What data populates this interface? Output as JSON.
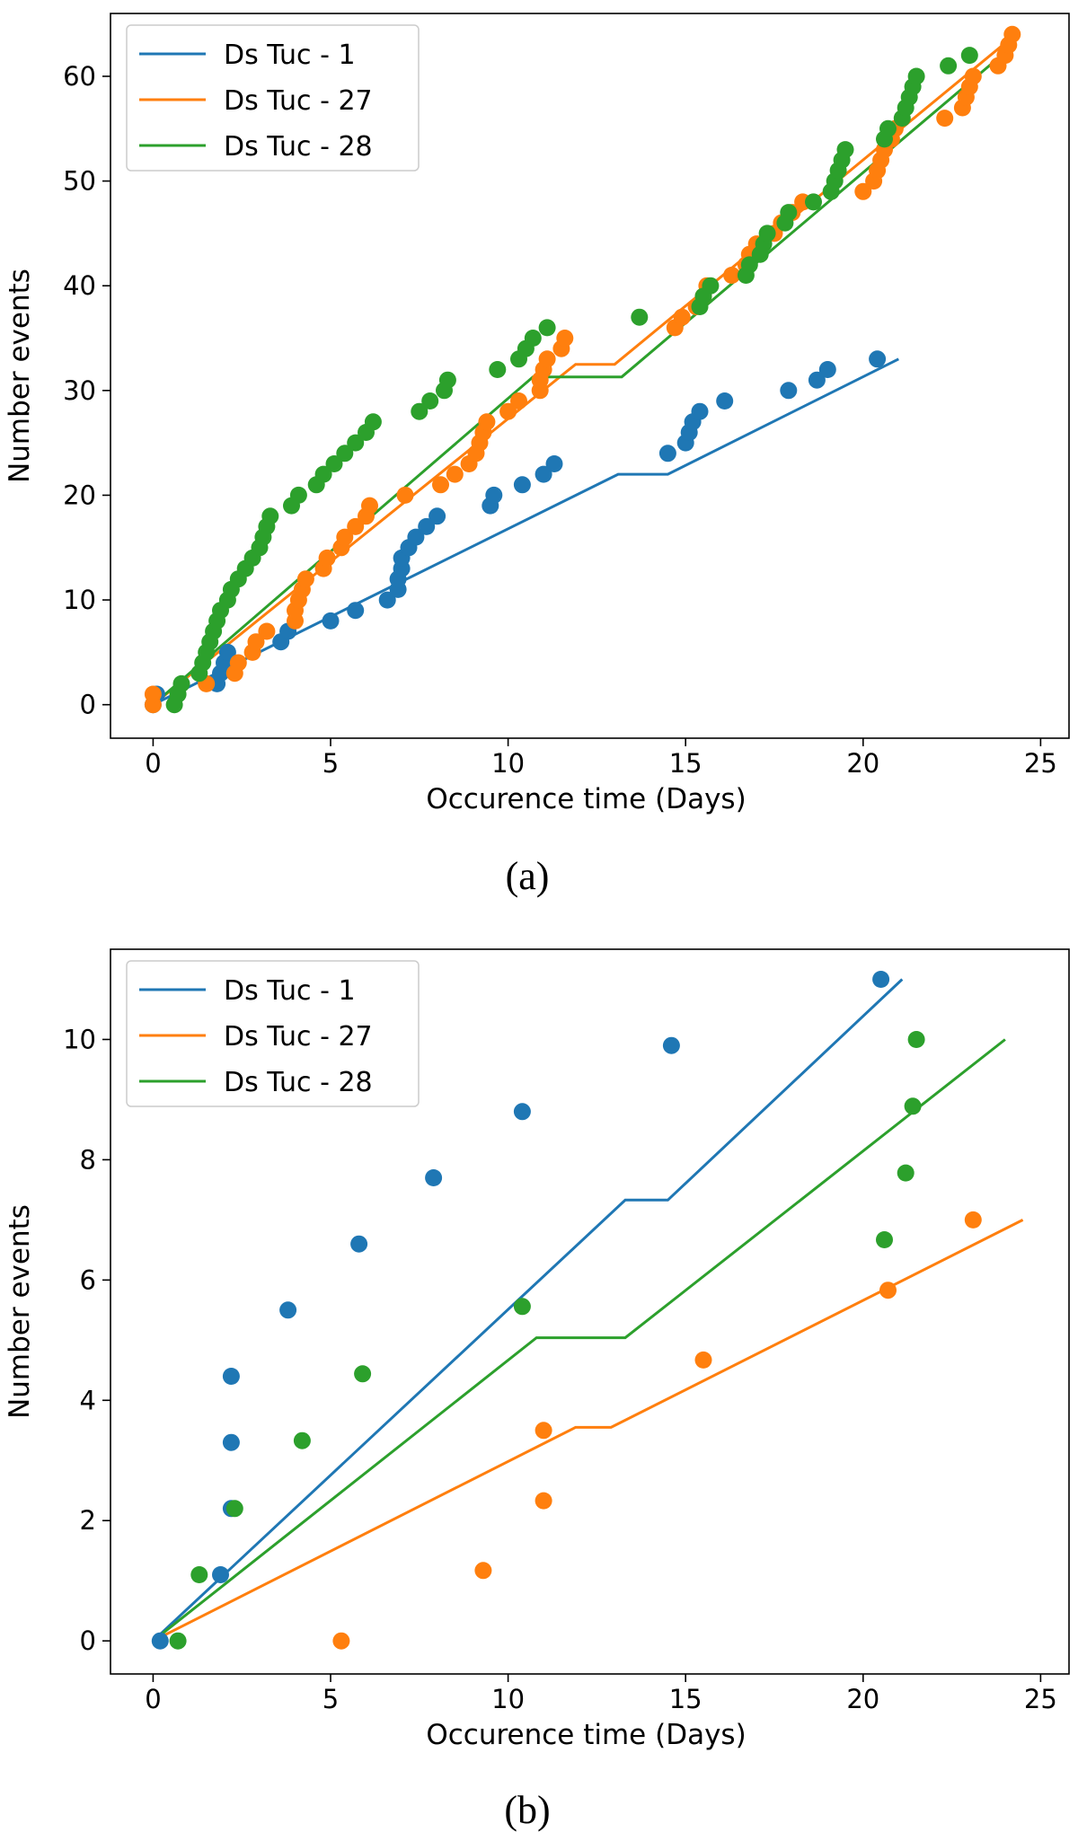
{
  "figure": {
    "captions": [
      "(a)",
      "(b)"
    ],
    "colors": {
      "Ds Tuc - 1": "#1f77b4",
      "Ds Tuc - 27": "#ff7f0e",
      "Ds Tuc - 28": "#2ca02c"
    }
  },
  "chart_data": [
    {
      "panel": "(a)",
      "type": "scatter",
      "title": "",
      "xlabel": "Occurence time (Days)",
      "ylabel": "Number events",
      "xlim": [
        -1.2,
        25.8
      ],
      "ylim": [
        -3.2,
        66
      ],
      "xticks": [
        0,
        5,
        10,
        15,
        20,
        25
      ],
      "yticks": [
        0,
        10,
        20,
        30,
        40,
        50,
        60
      ],
      "legend": {
        "location": "upper-left",
        "entries": [
          "Ds Tuc - 1",
          "Ds Tuc - 27",
          "Ds Tuc - 28"
        ]
      },
      "series": [
        {
          "name": "Ds Tuc - 1",
          "color": "#1f77b4",
          "points": [
            [
              0,
              0
            ],
            [
              0.1,
              1
            ],
            [
              1.8,
              2
            ],
            [
              1.9,
              3
            ],
            [
              2.0,
              4
            ],
            [
              2.1,
              5
            ],
            [
              3.6,
              6
            ],
            [
              3.8,
              7
            ],
            [
              5.0,
              8
            ],
            [
              5.7,
              9
            ],
            [
              6.6,
              10
            ],
            [
              6.9,
              11
            ],
            [
              6.9,
              12
            ],
            [
              7.0,
              13
            ],
            [
              7.0,
              14
            ],
            [
              7.2,
              15
            ],
            [
              7.4,
              16
            ],
            [
              7.7,
              17
            ],
            [
              8.0,
              18
            ],
            [
              9.5,
              19
            ],
            [
              9.6,
              20
            ],
            [
              10.4,
              21
            ],
            [
              11.0,
              22
            ],
            [
              11.3,
              23
            ],
            [
              14.5,
              24
            ],
            [
              15.0,
              25
            ],
            [
              15.1,
              26
            ],
            [
              15.2,
              27
            ],
            [
              15.4,
              28
            ],
            [
              16.1,
              29
            ],
            [
              17.9,
              30
            ],
            [
              18.7,
              31
            ],
            [
              19.0,
              32
            ],
            [
              20.4,
              33
            ]
          ],
          "fit_line": [
            [
              0,
              0
            ],
            [
              13.1,
              22
            ],
            [
              14.5,
              22
            ],
            [
              21.0,
              33
            ]
          ]
        },
        {
          "name": "Ds Tuc - 27",
          "color": "#ff7f0e",
          "points": [
            [
              0,
              0
            ],
            [
              0,
              1
            ],
            [
              1.5,
              2
            ],
            [
              2.3,
              3
            ],
            [
              2.4,
              4
            ],
            [
              2.8,
              5
            ],
            [
              2.9,
              6
            ],
            [
              3.2,
              7
            ],
            [
              4.0,
              8
            ],
            [
              4.0,
              9
            ],
            [
              4.1,
              10
            ],
            [
              4.2,
              11
            ],
            [
              4.3,
              12
            ],
            [
              4.8,
              13
            ],
            [
              4.9,
              14
            ],
            [
              5.3,
              15
            ],
            [
              5.4,
              16
            ],
            [
              5.7,
              17
            ],
            [
              6.0,
              18
            ],
            [
              6.1,
              19
            ],
            [
              7.1,
              20
            ],
            [
              8.1,
              21
            ],
            [
              8.5,
              22
            ],
            [
              8.9,
              23
            ],
            [
              9.1,
              24
            ],
            [
              9.2,
              25
            ],
            [
              9.3,
              26
            ],
            [
              9.4,
              27
            ],
            [
              10.0,
              28
            ],
            [
              10.3,
              29
            ],
            [
              10.9,
              30
            ],
            [
              10.9,
              31
            ],
            [
              11.0,
              32
            ],
            [
              11.1,
              33
            ],
            [
              11.5,
              34
            ],
            [
              11.6,
              35
            ],
            [
              14.7,
              36
            ],
            [
              14.9,
              37
            ],
            [
              15.3,
              38
            ],
            [
              15.5,
              39
            ],
            [
              15.6,
              40
            ],
            [
              16.3,
              41
            ],
            [
              16.7,
              42
            ],
            [
              16.8,
              43
            ],
            [
              17.0,
              44
            ],
            [
              17.5,
              45
            ],
            [
              17.7,
              46
            ],
            [
              18.0,
              47
            ],
            [
              18.3,
              48
            ],
            [
              20.0,
              49
            ],
            [
              20.3,
              50
            ],
            [
              20.4,
              51
            ],
            [
              20.5,
              52
            ],
            [
              20.6,
              53
            ],
            [
              20.8,
              54
            ],
            [
              20.9,
              55
            ],
            [
              22.3,
              56
            ],
            [
              22.8,
              57
            ],
            [
              22.9,
              58
            ],
            [
              23.0,
              59
            ],
            [
              23.1,
              60
            ],
            [
              23.8,
              61
            ],
            [
              24.0,
              62
            ],
            [
              24.1,
              63
            ],
            [
              24.2,
              64
            ]
          ],
          "fit_line": [
            [
              0,
              0
            ],
            [
              11.9,
              32.5
            ],
            [
              13.0,
              32.5
            ],
            [
              24.3,
              64
            ]
          ]
        },
        {
          "name": "Ds Tuc - 28",
          "color": "#2ca02c",
          "points": [
            [
              0.6,
              0
            ],
            [
              0.7,
              1
            ],
            [
              0.8,
              2
            ],
            [
              1.3,
              3
            ],
            [
              1.4,
              4
            ],
            [
              1.5,
              5
            ],
            [
              1.6,
              6
            ],
            [
              1.7,
              7
            ],
            [
              1.8,
              8
            ],
            [
              1.9,
              9
            ],
            [
              2.1,
              10
            ],
            [
              2.2,
              11
            ],
            [
              2.4,
              12
            ],
            [
              2.6,
              13
            ],
            [
              2.8,
              14
            ],
            [
              3.0,
              15
            ],
            [
              3.1,
              16
            ],
            [
              3.2,
              17
            ],
            [
              3.3,
              18
            ],
            [
              3.9,
              19
            ],
            [
              4.1,
              20
            ],
            [
              4.6,
              21
            ],
            [
              4.8,
              22
            ],
            [
              5.1,
              23
            ],
            [
              5.4,
              24
            ],
            [
              5.7,
              25
            ],
            [
              6.0,
              26
            ],
            [
              6.2,
              27
            ],
            [
              7.5,
              28
            ],
            [
              7.8,
              29
            ],
            [
              8.2,
              30
            ],
            [
              8.3,
              31
            ],
            [
              9.7,
              32
            ],
            [
              10.3,
              33
            ],
            [
              10.5,
              34
            ],
            [
              10.7,
              35
            ],
            [
              11.1,
              36
            ],
            [
              13.7,
              37
            ],
            [
              15.4,
              38
            ],
            [
              15.5,
              39
            ],
            [
              15.7,
              40
            ],
            [
              16.7,
              41
            ],
            [
              16.8,
              42
            ],
            [
              17.1,
              43
            ],
            [
              17.2,
              44
            ],
            [
              17.3,
              45
            ],
            [
              17.8,
              46
            ],
            [
              17.9,
              47
            ],
            [
              18.6,
              48
            ],
            [
              19.1,
              49
            ],
            [
              19.2,
              50
            ],
            [
              19.3,
              51
            ],
            [
              19.4,
              52
            ],
            [
              19.5,
              53
            ],
            [
              20.6,
              54
            ],
            [
              20.7,
              55
            ],
            [
              21.1,
              56
            ],
            [
              21.2,
              57
            ],
            [
              21.3,
              58
            ],
            [
              21.4,
              59
            ],
            [
              21.5,
              60
            ],
            [
              22.4,
              61
            ],
            [
              23.0,
              62
            ]
          ],
          "fit_line": [
            [
              0,
              0
            ],
            [
              10.7,
              31.3
            ],
            [
              13.2,
              31.3
            ],
            [
              23.9,
              62
            ]
          ]
        }
      ]
    },
    {
      "panel": "(b)",
      "type": "scatter",
      "title": "",
      "xlabel": "Occurence time (Days)",
      "ylabel": "Number events",
      "xlim": [
        -1.2,
        25.8
      ],
      "ylim": [
        -0.55,
        11.5
      ],
      "xticks": [
        0,
        5,
        10,
        15,
        20,
        25
      ],
      "yticks": [
        0,
        2,
        4,
        6,
        8,
        10
      ],
      "legend": {
        "location": "upper-left",
        "entries": [
          "Ds Tuc - 1",
          "Ds Tuc - 27",
          "Ds Tuc - 28"
        ]
      },
      "series": [
        {
          "name": "Ds Tuc - 1",
          "color": "#1f77b4",
          "points": [
            [
              0.2,
              0
            ],
            [
              1.9,
              1.1
            ],
            [
              2.2,
              2.2
            ],
            [
              2.2,
              3.3
            ],
            [
              2.2,
              4.4
            ],
            [
              3.8,
              5.5
            ],
            [
              5.8,
              6.6
            ],
            [
              7.9,
              7.7
            ],
            [
              10.4,
              8.8
            ],
            [
              14.6,
              9.9
            ],
            [
              20.5,
              11
            ]
          ],
          "fit_line": [
            [
              0,
              0
            ],
            [
              13.3,
              7.33
            ],
            [
              14.5,
              7.33
            ],
            [
              21.1,
              11
            ]
          ]
        },
        {
          "name": "Ds Tuc - 27",
          "color": "#ff7f0e",
          "points": [
            [
              5.3,
              0
            ],
            [
              9.3,
              1.17
            ],
            [
              11.0,
              2.33
            ],
            [
              11.0,
              3.5
            ],
            [
              15.5,
              4.67
            ],
            [
              20.7,
              5.83
            ],
            [
              23.1,
              7
            ]
          ],
          "fit_line": [
            [
              0,
              0
            ],
            [
              11.9,
              3.55
            ],
            [
              12.9,
              3.55
            ],
            [
              24.5,
              7
            ]
          ]
        },
        {
          "name": "Ds Tuc - 28",
          "color": "#2ca02c",
          "points": [
            [
              0.7,
              0
            ],
            [
              1.3,
              1.1
            ],
            [
              2.3,
              2.2
            ],
            [
              4.2,
              3.33
            ],
            [
              5.9,
              4.44
            ],
            [
              10.4,
              5.56
            ],
            [
              20.6,
              6.67
            ],
            [
              21.2,
              7.78
            ],
            [
              21.4,
              8.89
            ],
            [
              21.5,
              10
            ]
          ],
          "fit_line": [
            [
              0,
              0
            ],
            [
              10.8,
              5.04
            ],
            [
              13.3,
              5.04
            ],
            [
              24.0,
              10
            ]
          ]
        }
      ]
    }
  ]
}
